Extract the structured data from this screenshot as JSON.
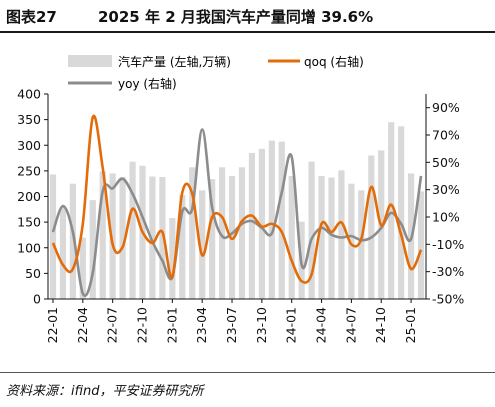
{
  "figure": {
    "number": "图表27",
    "title": "2025 年 2 月我国汽车产量同增 39.6%"
  },
  "source": "资料来源：ifind，平安证券研究所",
  "colors": {
    "bar": "#d9d9d9",
    "qoq": "#e36c0a",
    "yoy": "#8c8c8c"
  },
  "chart_data": {
    "type": "bar",
    "categories": [
      "22-01",
      "22-02",
      "22-03",
      "22-04",
      "22-05",
      "22-06",
      "22-07",
      "22-08",
      "22-09",
      "22-10",
      "22-11",
      "22-12",
      "23-01",
      "23-02",
      "23-03",
      "23-04",
      "23-05",
      "23-06",
      "23-07",
      "23-08",
      "23-09",
      "23-10",
      "23-11",
      "23-12",
      "24-01",
      "24-02",
      "24-03",
      "24-04",
      "24-05",
      "24-06",
      "24-07",
      "24-08",
      "24-09",
      "24-10",
      "24-11",
      "24-12",
      "25-01",
      "25-02"
    ],
    "x_tick_labels": [
      "22-01",
      "22-04",
      "22-07",
      "22-10",
      "23-01",
      "23-04",
      "23-07",
      "23-10",
      "24-01",
      "24-04",
      "24-07",
      "24-10",
      "25-01"
    ],
    "series": [
      {
        "name": "汽车产量 (左轴,万辆)",
        "type": "bar",
        "axis": "left",
        "values": [
          243,
          180,
          225,
          120,
          193,
          249,
          245,
          238,
          268,
          260,
          239,
          238,
          158,
          203,
          257,
          212,
          234,
          257,
          240,
          257,
          285,
          293,
          309,
          307,
          240,
          151,
          268,
          240,
          237,
          251,
          225,
          212,
          280,
          290,
          345,
          337,
          245,
          210
        ]
      },
      {
        "name": "qoq (右轴)",
        "type": "line",
        "axis": "right",
        "values": [
          -9,
          -25,
          -28,
          5,
          83,
          46,
          -10,
          -12,
          16,
          -1,
          -9,
          -1,
          -34,
          28,
          27,
          -18,
          10,
          10,
          -6,
          7,
          11,
          3,
          5,
          -1,
          -22,
          -37,
          -32,
          5,
          -1,
          6,
          -10,
          -6,
          32,
          4,
          19,
          -3,
          -28,
          -14
        ]
      },
      {
        "name": "yoy (右轴)",
        "type": "line",
        "axis": "right",
        "values": [
          -1,
          18,
          -1,
          -46,
          -31,
          29,
          31,
          38,
          27,
          10,
          -8,
          -22,
          -34,
          14,
          16,
          74,
          17,
          -4,
          -2,
          5,
          7,
          2,
          -2,
          28,
          54,
          -25,
          -6,
          2,
          -3,
          -5,
          -4,
          -7,
          -5,
          2,
          13,
          5,
          -6,
          40
        ]
      }
    ],
    "y_left": {
      "min": 0,
      "max": 400,
      "ticks": [
        0,
        50,
        100,
        150,
        200,
        250,
        300,
        350,
        400
      ]
    },
    "y_right": {
      "min": -50,
      "max": 100,
      "ticks": [
        "-50%",
        "-30%",
        "-10%",
        "10%",
        "30%",
        "50%",
        "70%",
        "90%"
      ]
    },
    "legend_position": "top"
  }
}
